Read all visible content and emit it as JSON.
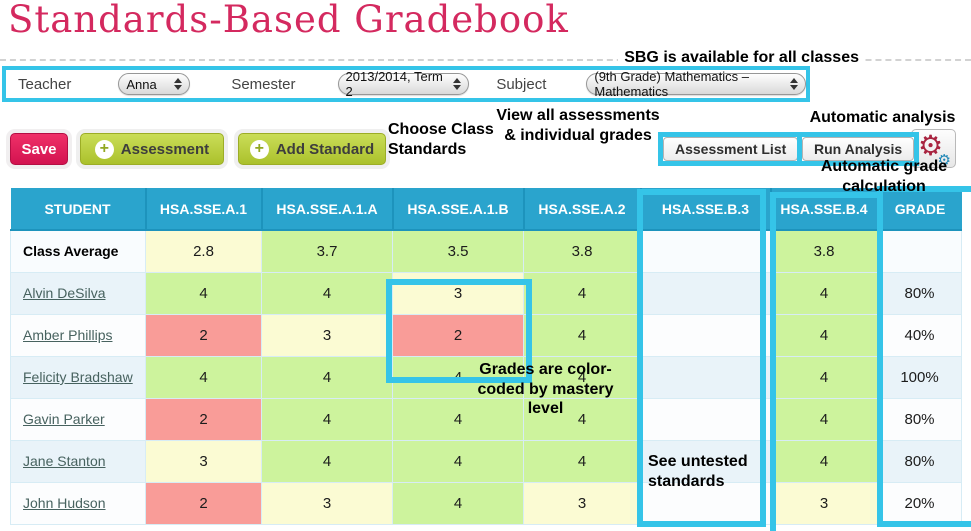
{
  "title": "Standards-Based Gradebook",
  "banner": {
    "sbg_note": "SBG is available for all classes"
  },
  "filters": {
    "teacher_label": "Teacher",
    "teacher_value": "Anna",
    "semester_label": "Semester",
    "semester_value": "2013/2014, Term 2",
    "subject_label": "Subject",
    "subject_value": "(9th Grade) Mathematics – Mathematics"
  },
  "toolbar": {
    "save_label": "Save",
    "assessment_label": "Assessment",
    "add_standard_label": "Add Standard",
    "plus_icon": "+",
    "assessment_list_label": "Assessment List",
    "run_analysis_label": "Run Analysis",
    "gear_icon": "⚙"
  },
  "annotations": {
    "choose_standards": "Choose Class Standards",
    "view_all": "View all assessments & individual grades",
    "automatic_analysis": "Automatic analysis",
    "automatic_grade": "Automatic grade calculation",
    "color_coded": "Grades are color-coded by mastery level",
    "untested": "See untested standards"
  },
  "table": {
    "columns": [
      "STUDENT",
      "HSA.SSE.A.1",
      "HSA.SSE.A.1.A",
      "HSA.SSE.A.1.B",
      "HSA.SSE.A.2",
      "HSA.SSE.B.3",
      "HSA.SSE.B.4",
      "GRADE"
    ],
    "rows": [
      {
        "name": "Class Average",
        "type": "average",
        "scores": [
          {
            "v": "2.8",
            "c": "yellow"
          },
          {
            "v": "3.7",
            "c": "green"
          },
          {
            "v": "3.5",
            "c": "green"
          },
          {
            "v": "3.8",
            "c": "green"
          },
          {
            "v": "",
            "c": "none"
          },
          {
            "v": "3.8",
            "c": "green"
          }
        ],
        "grade": ""
      },
      {
        "name": "Alvin DeSilva",
        "type": "student",
        "scores": [
          {
            "v": "4",
            "c": "green"
          },
          {
            "v": "4",
            "c": "green"
          },
          {
            "v": "3",
            "c": "yellow"
          },
          {
            "v": "4",
            "c": "green"
          },
          {
            "v": "",
            "c": "none"
          },
          {
            "v": "4",
            "c": "green"
          }
        ],
        "grade": "80%"
      },
      {
        "name": "Amber Phillips",
        "type": "student",
        "scores": [
          {
            "v": "2",
            "c": "red"
          },
          {
            "v": "3",
            "c": "yellow"
          },
          {
            "v": "2",
            "c": "red"
          },
          {
            "v": "4",
            "c": "green"
          },
          {
            "v": "",
            "c": "none"
          },
          {
            "v": "4",
            "c": "green"
          }
        ],
        "grade": "40%"
      },
      {
        "name": "Felicity Bradshaw",
        "type": "student",
        "scores": [
          {
            "v": "4",
            "c": "green"
          },
          {
            "v": "4",
            "c": "green"
          },
          {
            "v": "4",
            "c": "green"
          },
          {
            "v": "4",
            "c": "green"
          },
          {
            "v": "",
            "c": "none"
          },
          {
            "v": "4",
            "c": "green"
          }
        ],
        "grade": "100%"
      },
      {
        "name": "Gavin Parker",
        "type": "student",
        "scores": [
          {
            "v": "2",
            "c": "red"
          },
          {
            "v": "4",
            "c": "green"
          },
          {
            "v": "4",
            "c": "green"
          },
          {
            "v": "4",
            "c": "green"
          },
          {
            "v": "",
            "c": "none"
          },
          {
            "v": "4",
            "c": "green"
          }
        ],
        "grade": "80%"
      },
      {
        "name": "Jane Stanton",
        "type": "student",
        "scores": [
          {
            "v": "3",
            "c": "yellow"
          },
          {
            "v": "4",
            "c": "green"
          },
          {
            "v": "4",
            "c": "green"
          },
          {
            "v": "4",
            "c": "green"
          },
          {
            "v": "",
            "c": "none"
          },
          {
            "v": "4",
            "c": "green"
          }
        ],
        "grade": "80%"
      },
      {
        "name": "John Hudson",
        "type": "student",
        "scores": [
          {
            "v": "2",
            "c": "red"
          },
          {
            "v": "3",
            "c": "yellow"
          },
          {
            "v": "4",
            "c": "green"
          },
          {
            "v": "3",
            "c": "yellow"
          },
          {
            "v": "",
            "c": "none"
          },
          {
            "v": "3",
            "c": "yellow"
          }
        ],
        "grade": "20%"
      }
    ]
  },
  "colors": {
    "accent_cyan": "#35c4e8",
    "header_blue": "#2aa4cd",
    "title_pink": "#d4295f",
    "save_red": "#dd1550",
    "button_green": "#b9cc3a",
    "mastery_green": "#cdf39d",
    "mastery_yellow": "#fbfbd3",
    "mastery_red": "#f99c98"
  }
}
